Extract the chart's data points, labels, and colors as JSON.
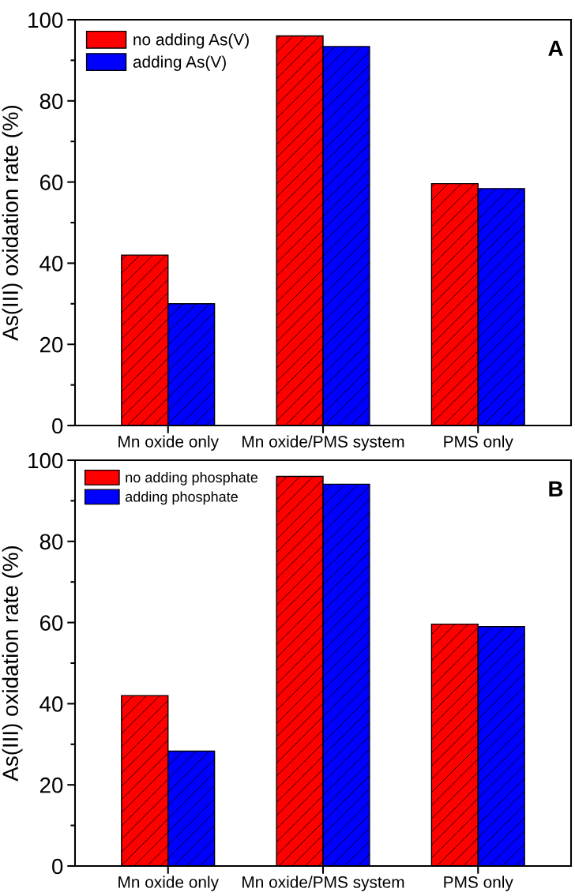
{
  "chart_data": [
    {
      "type": "bar",
      "ylabel": "As(III) oxidation rate (%)",
      "categories": [
        "Mn oxide only",
        "Mn oxide/PMS system",
        "PMS only"
      ],
      "series": [
        {
          "name": "no adding As(V)",
          "color": "#ff0000",
          "values": [
            42,
            96,
            59.6
          ]
        },
        {
          "name": "adding As(V)",
          "color": "#0000ff",
          "values": [
            30,
            93.4,
            58.4
          ]
        }
      ],
      "ylim": [
        0,
        100
      ],
      "yticks": [
        0,
        20,
        40,
        60,
        80,
        100
      ],
      "legend": "top left",
      "annotations": [
        "A"
      ]
    },
    {
      "type": "bar",
      "ylabel": "As(III) oxidation rate (%)",
      "categories": [
        "Mn oxide only",
        "Mn oxide/PMS system",
        "PMS only"
      ],
      "series": [
        {
          "name": "no adding phosphate",
          "color": "#ff0000",
          "values": [
            42,
            96,
            59.6
          ]
        },
        {
          "name": "adding phosphate",
          "color": "#0000ff",
          "values": [
            28.3,
            94.1,
            59.0
          ]
        }
      ],
      "ylim": [
        0,
        100
      ],
      "yticks": [
        0,
        20,
        40,
        60,
        80,
        100
      ],
      "legend": "top left",
      "annotations": [
        "B"
      ]
    }
  ]
}
